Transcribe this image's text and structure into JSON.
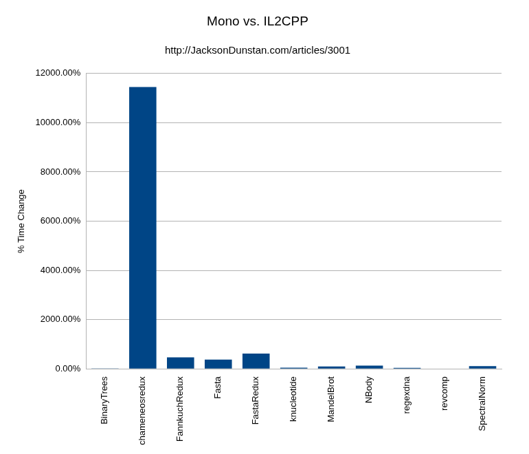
{
  "chart_data": {
    "type": "bar",
    "title": "Mono vs. IL2CPP",
    "subtitle": "http://JacksonDunstan.com/articles/3001",
    "y_label": "% Time Change",
    "categories": [
      "BinaryTrees",
      "chameneosredux",
      "FannkuchRedux",
      "Fasta",
      "FastaRedux",
      "knucleotide",
      "MandelBrot",
      "NBody",
      "regexdna",
      "revcomp",
      "SpectralNorm"
    ],
    "values": [
      20,
      11450,
      470,
      380,
      620,
      50,
      100,
      130,
      40,
      0,
      110
    ],
    "color": "#004586",
    "ylim": [
      0,
      12000
    ],
    "yticks": [
      {
        "value": 0,
        "label": "0.00%"
      },
      {
        "value": 2000,
        "label": "2000.00%"
      },
      {
        "value": 4000,
        "label": "4000.00%"
      },
      {
        "value": 6000,
        "label": "6000.00%"
      },
      {
        "value": 8000,
        "label": "8000.00%"
      },
      {
        "value": 10000,
        "label": "10000.00%"
      },
      {
        "value": 12000,
        "label": "12000.00%"
      }
    ],
    "grid": true
  }
}
